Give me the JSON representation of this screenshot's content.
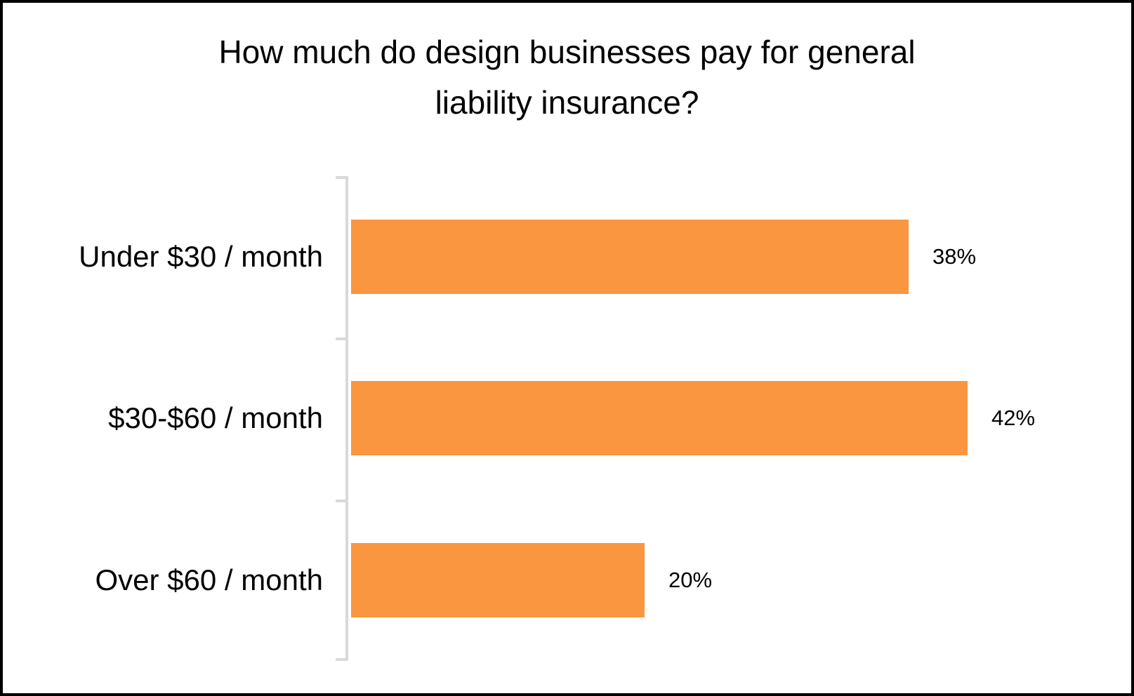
{
  "title_lines": [
    "How much do design businesses pay for general",
    "liability insurance?"
  ],
  "chart_data": {
    "type": "bar",
    "orientation": "horizontal",
    "title": "How much do design businesses pay for general liability insurance?",
    "categories": [
      "Under $30 / month",
      "$30-$60 / month",
      "Over $60 / month"
    ],
    "values": [
      38,
      42,
      20
    ],
    "data_labels": [
      "38%",
      "42%",
      "20%"
    ],
    "xlabel": "",
    "ylabel": "",
    "xlim": [
      0,
      50
    ],
    "grid": false,
    "legend": false,
    "bar_color": "#FA9640",
    "axis_color": "#D9D9D9",
    "text_color": "#000000"
  }
}
